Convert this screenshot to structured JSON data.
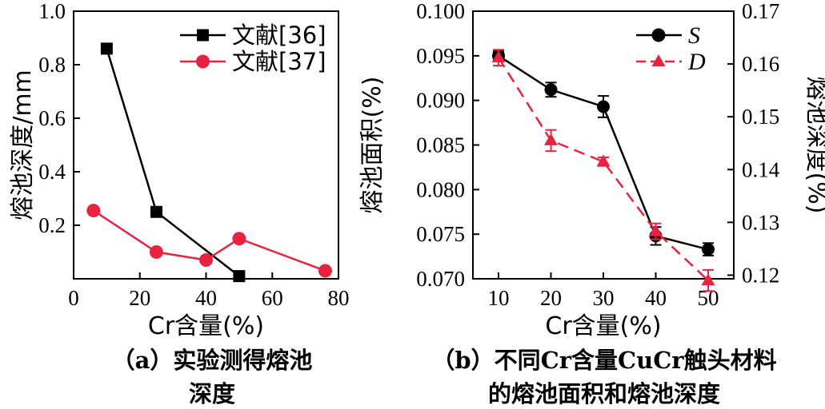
{
  "chart_data": [
    {
      "type": "line",
      "xlabel": "Cr含量(%)",
      "ylabel": "熔池深度/mm",
      "xlim": [
        0,
        80
      ],
      "ylim": [
        0,
        1.0
      ],
      "xticks": [
        "0",
        "20",
        "40",
        "60",
        "80"
      ],
      "yticks": [
        "0.2",
        "0.4",
        "0.6",
        "0.8",
        "1.0"
      ],
      "legend_position": "top-right",
      "grid": false,
      "series": [
        {
          "name": "文献[36]",
          "marker": "square",
          "color": "#000000",
          "x": [
            10,
            25,
            50
          ],
          "y": [
            0.86,
            0.25,
            0.01
          ]
        },
        {
          "name": "文献[37]",
          "marker": "circle",
          "color": "#e8233f",
          "x": [
            6,
            25,
            40,
            50,
            76
          ],
          "y": [
            0.255,
            0.1,
            0.07,
            0.15,
            0.03
          ]
        }
      ],
      "caption_lines": [
        "（a）实验测得熔池",
        "深度"
      ]
    },
    {
      "type": "line",
      "xlabel": "Cr含量(%)",
      "ylabel": "熔池面积(%)",
      "ylabel_right": "熔池深度(%)",
      "x": [
        10,
        20,
        30,
        40,
        50
      ],
      "xticks": [
        "10",
        "20",
        "30",
        "40",
        "50"
      ],
      "ylim": [
        0.07,
        0.1
      ],
      "yticks": [
        "0.070",
        "0.075",
        "0.080",
        "0.085",
        "0.090",
        "0.095",
        "0.100"
      ],
      "ylim_right": [
        0.115,
        0.17
      ],
      "yticks_right": [
        "0.12",
        "0.13",
        "0.14",
        "0.15",
        "0.16",
        "0.17"
      ],
      "legend_position": "top-right",
      "grid": false,
      "series": [
        {
          "name": "S",
          "axis": "left",
          "marker": "circle",
          "line": "solid",
          "color": "#000000",
          "y": [
            0.095,
            0.0912,
            0.0893,
            0.0748,
            0.0733
          ],
          "err": [
            0.0005,
            0.0008,
            0.0012,
            0.001,
            0.0007
          ]
        },
        {
          "name": "D",
          "axis": "right",
          "marker": "triangle",
          "line": "dashed",
          "color": "#e8233f",
          "y": [
            0.1612,
            0.1455,
            0.1415,
            0.1283,
            0.119
          ],
          "err": [
            0.0015,
            0.002,
            0.0008,
            0.0015,
            0.002
          ]
        }
      ],
      "caption_lines": [
        "（b）不同Cr含量CuCr触头材料",
        "的熔池面积和熔池深度"
      ]
    }
  ]
}
